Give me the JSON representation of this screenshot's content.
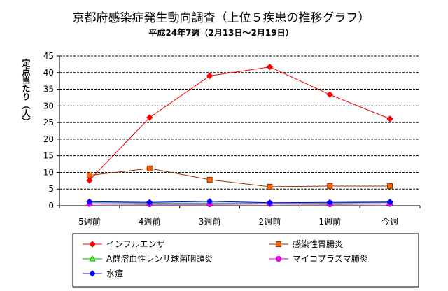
{
  "chart_data": {
    "type": "line",
    "title": "京都府感染症発生動向調査（上位５疾患の推移グラフ）",
    "subtitle": "平成24年7週（2月13日～2月19日）",
    "ylabel": "定点当たり（人）",
    "ylim": [
      0,
      45
    ],
    "yticks": [
      0,
      5,
      10,
      15,
      20,
      25,
      30,
      35,
      40,
      45
    ],
    "grid": true,
    "legend_position": "bottom",
    "categories": [
      "5週前",
      "4週前",
      "3週前",
      "2週前",
      "1週前",
      "今週"
    ],
    "series": [
      {
        "name": "インフルエンザ",
        "color": "#ff0000",
        "marker_color": "#ff0000",
        "marker": "diamond",
        "values": [
          7.6,
          26.5,
          39.0,
          41.7,
          33.4,
          26.1
        ]
      },
      {
        "name": "感染性胃腸炎",
        "color": "#993300",
        "marker_color": "#ff6600",
        "marker": "square",
        "values": [
          9.1,
          11.2,
          7.8,
          5.7,
          5.9,
          5.9
        ]
      },
      {
        "name": "A群溶血性レンサ球菌咽頭炎",
        "color": "#00aa00",
        "marker_color": "#66ff33",
        "marker": "triangle",
        "values": [
          0.9,
          0.8,
          0.8,
          0.8,
          0.8,
          0.9
        ]
      },
      {
        "name": "マイコプラズマ肺炎",
        "color": "#cc00cc",
        "marker_color": "#ff00ff",
        "marker": "circle",
        "values": [
          0.5,
          0.4,
          0.4,
          0.5,
          0.4,
          0.5
        ]
      },
      {
        "name": "水痘",
        "color": "#0000ff",
        "marker_color": "#0000ff",
        "marker": "diamond",
        "values": [
          1.2,
          1.0,
          1.3,
          0.9,
          1.0,
          1.1
        ]
      }
    ]
  }
}
